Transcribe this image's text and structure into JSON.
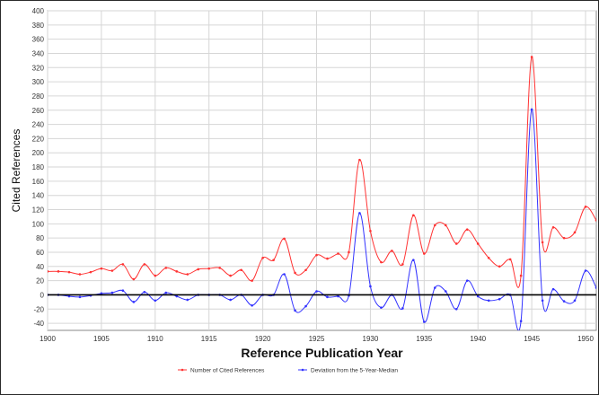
{
  "chart_data": {
    "type": "line",
    "xlabel": "Reference Publication Year",
    "ylabel": "Cited References",
    "xlim": [
      1900,
      1951
    ],
    "ylim": [
      -50,
      400
    ],
    "xticks": [
      1900,
      1905,
      1910,
      1915,
      1920,
      1925,
      1930,
      1935,
      1940,
      1945,
      1950
    ],
    "yticks": [
      -40,
      -20,
      0,
      20,
      40,
      60,
      80,
      100,
      120,
      140,
      160,
      180,
      200,
      220,
      240,
      260,
      280,
      300,
      320,
      340,
      360,
      380,
      400
    ],
    "grid": true,
    "legend_position": "bottom",
    "x": [
      1900,
      1901,
      1902,
      1903,
      1904,
      1905,
      1906,
      1907,
      1908,
      1909,
      1910,
      1911,
      1912,
      1913,
      1914,
      1915,
      1916,
      1917,
      1918,
      1919,
      1920,
      1921,
      1922,
      1923,
      1924,
      1925,
      1926,
      1927,
      1928,
      1929,
      1930,
      1931,
      1932,
      1933,
      1934,
      1935,
      1936,
      1937,
      1938,
      1939,
      1940,
      1941,
      1942,
      1943,
      1944,
      1945,
      1946,
      1947,
      1948,
      1949,
      1950,
      1951
    ],
    "series": [
      {
        "name": "Number of Cited References",
        "color": "#ff3333",
        "values": [
          33,
          33,
          32,
          29,
          32,
          37,
          34,
          43,
          22,
          43,
          27,
          38,
          33,
          29,
          36,
          37,
          38,
          27,
          35,
          20,
          52,
          49,
          79,
          31,
          35,
          56,
          51,
          58,
          60,
          190,
          90,
          46,
          62,
          43,
          112,
          58,
          98,
          98,
          72,
          92,
          72,
          52,
          40,
          50,
          27,
          335,
          74,
          95,
          80,
          88,
          124,
          105
        ]
      },
      {
        "name": "Deviation from the 5-Year-Median",
        "color": "#3333ff",
        "values": [
          0,
          0,
          -2,
          -3,
          -1,
          2,
          3,
          6,
          -10,
          4,
          -8,
          3,
          -2,
          -7,
          0,
          0,
          0,
          -7,
          0,
          -15,
          0,
          0,
          29,
          -22,
          -16,
          5,
          -3,
          -2,
          -1,
          115,
          12,
          -18,
          0,
          -19,
          49,
          -38,
          10,
          5,
          -20,
          20,
          -2,
          -8,
          -6,
          0,
          -37,
          261,
          -8,
          8,
          -9,
          -8,
          34,
          10
        ]
      }
    ]
  }
}
